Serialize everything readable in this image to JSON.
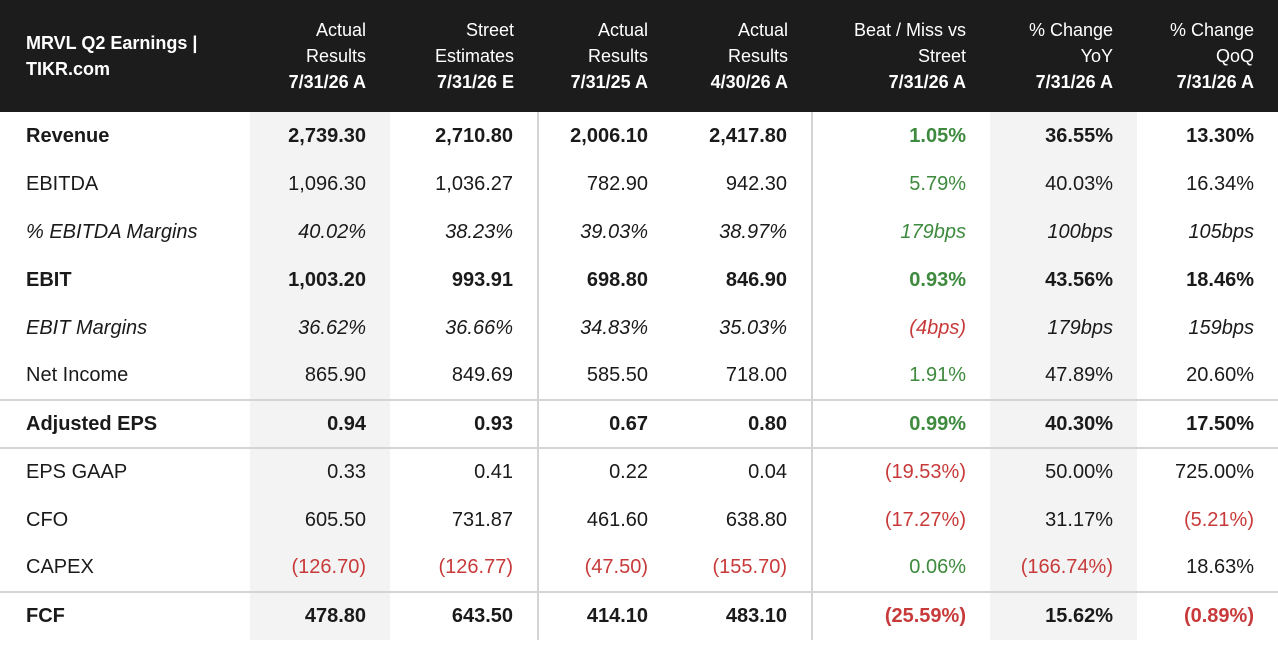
{
  "header": {
    "title": "MRVL Q2 Earnings | TIKR.com",
    "columns": [
      {
        "lines": [
          "Actual",
          "Results"
        ],
        "date": "7/31/26 A"
      },
      {
        "lines": [
          "Street",
          "Estimates"
        ],
        "date": "7/31/26 E"
      },
      {
        "lines": [
          "Actual",
          "Results"
        ],
        "date": "7/31/25 A"
      },
      {
        "lines": [
          "Actual",
          "Results"
        ],
        "date": "4/30/26 A"
      },
      {
        "lines": [
          "Beat / Miss vs",
          "Street"
        ],
        "date": "7/31/26 A"
      },
      {
        "lines": [
          "% Change",
          "YoY"
        ],
        "date": "7/31/26 A"
      },
      {
        "lines": [
          "% Change",
          "QoQ"
        ],
        "date": "7/31/26 A"
      }
    ]
  },
  "rows": [
    {
      "label": "Revenue",
      "style": "bold",
      "values": [
        "2,739.30",
        "2,710.80",
        "2,006.10",
        "2,417.80",
        "1.05%",
        "36.55%",
        "13.30%"
      ],
      "colors": [
        "",
        "",
        "",
        "",
        "pos",
        "",
        ""
      ]
    },
    {
      "label": "EBITDA",
      "style": "normal",
      "values": [
        "1,096.30",
        "1,036.27",
        "782.90",
        "942.30",
        "5.79%",
        "40.03%",
        "16.34%"
      ],
      "colors": [
        "",
        "",
        "",
        "",
        "pos",
        "",
        ""
      ]
    },
    {
      "label": "% EBITDA Margins",
      "style": "italic",
      "values": [
        "40.02%",
        "38.23%",
        "39.03%",
        "38.97%",
        "179bps",
        "100bps",
        "105bps"
      ],
      "colors": [
        "",
        "",
        "",
        "",
        "pos",
        "",
        ""
      ]
    },
    {
      "label": "EBIT",
      "style": "bold",
      "values": [
        "1,003.20",
        "993.91",
        "698.80",
        "846.90",
        "0.93%",
        "43.56%",
        "18.46%"
      ],
      "colors": [
        "",
        "",
        "",
        "",
        "pos",
        "",
        ""
      ]
    },
    {
      "label": "EBIT Margins",
      "style": "italic",
      "values": [
        "36.62%",
        "36.66%",
        "34.83%",
        "35.03%",
        "(4bps)",
        "179bps",
        "159bps"
      ],
      "colors": [
        "",
        "",
        "",
        "",
        "neg",
        "",
        ""
      ]
    },
    {
      "label": "Net Income",
      "style": "normal",
      "values": [
        "865.90",
        "849.69",
        "585.50",
        "718.00",
        "1.91%",
        "47.89%",
        "20.60%"
      ],
      "colors": [
        "",
        "",
        "",
        "",
        "pos",
        "",
        ""
      ]
    },
    {
      "label": "Adjusted EPS",
      "style": "bold",
      "values": [
        "0.94",
        "0.93",
        "0.67",
        "0.80",
        "0.99%",
        "40.30%",
        "17.50%"
      ],
      "colors": [
        "",
        "",
        "",
        "",
        "pos",
        "",
        ""
      ]
    },
    {
      "label": "EPS GAAP",
      "style": "normal",
      "values": [
        "0.33",
        "0.41",
        "0.22",
        "0.04",
        "(19.53%)",
        "50.00%",
        "725.00%"
      ],
      "colors": [
        "",
        "",
        "",
        "",
        "neg",
        "",
        ""
      ]
    },
    {
      "label": "CFO",
      "style": "normal",
      "values": [
        "605.50",
        "731.87",
        "461.60",
        "638.80",
        "(17.27%)",
        "31.17%",
        "(5.21%)"
      ],
      "colors": [
        "",
        "",
        "",
        "",
        "neg",
        "",
        "neg"
      ]
    },
    {
      "label": "CAPEX",
      "style": "normal",
      "values": [
        "(126.70)",
        "(126.77)",
        "(47.50)",
        "(155.70)",
        "0.06%",
        "(166.74%)",
        "18.63%"
      ],
      "colors": [
        "neg",
        "neg",
        "neg",
        "neg",
        "pos",
        "neg",
        ""
      ]
    },
    {
      "label": "FCF",
      "style": "bold",
      "values": [
        "478.80",
        "643.50",
        "414.10",
        "483.10",
        "(25.59%)",
        "15.62%",
        "(0.89%)"
      ],
      "colors": [
        "",
        "",
        "",
        "",
        "neg",
        "",
        "neg"
      ]
    }
  ],
  "colors": {
    "header_bg": "#1c1c1c",
    "positive": "#3e8a3e",
    "negative": "#c83a3a",
    "shade": "#f3f3f3"
  }
}
